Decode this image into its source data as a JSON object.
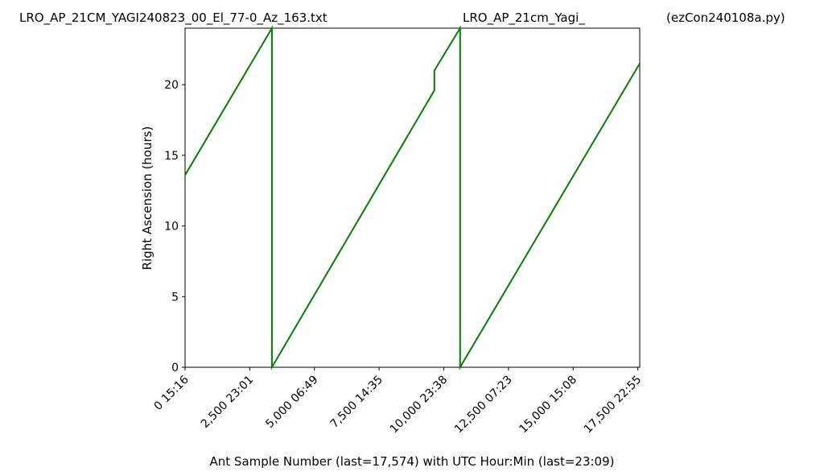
{
  "chart_data": {
    "type": "line",
    "titles": [
      "LRO_AP_21CM_YAGI240823_00_El_77-0_Az_163.txt",
      "LRO_AP_21cm_Yagi_",
      "(ezCon240108a.py)"
    ],
    "x_label": "Ant Sample Number (last=17,574) with UTC Hour:Min (last=23:09)",
    "y_label": "Right Ascension (hours)",
    "x": [
      0,
      3357,
      3357,
      9636,
      9636,
      10631,
      10631,
      17574
    ],
    "series": [
      {
        "name": "RA",
        "color": "#008000",
        "values": [
          13.6,
          24,
          0,
          19.6,
          21,
          24,
          0,
          21.5
        ]
      }
    ],
    "xlim": [
      0,
      17574
    ],
    "ylim": [
      0,
      24
    ],
    "xticks": [
      {
        "value": 0,
        "label": "0  15:16"
      },
      {
        "value": 2500,
        "label": "2,500  23:01"
      },
      {
        "value": 5000,
        "label": "5,000  06:49"
      },
      {
        "value": 7500,
        "label": "7,500  14:35"
      },
      {
        "value": 10000,
        "label": "10,000  23:38"
      },
      {
        "value": 12500,
        "label": "12,500  07:23"
      },
      {
        "value": 15000,
        "label": "15,000  15:08"
      },
      {
        "value": 17500,
        "label": "17,500  22:55"
      }
    ],
    "yticks": [
      0,
      5,
      10,
      15,
      20
    ]
  }
}
